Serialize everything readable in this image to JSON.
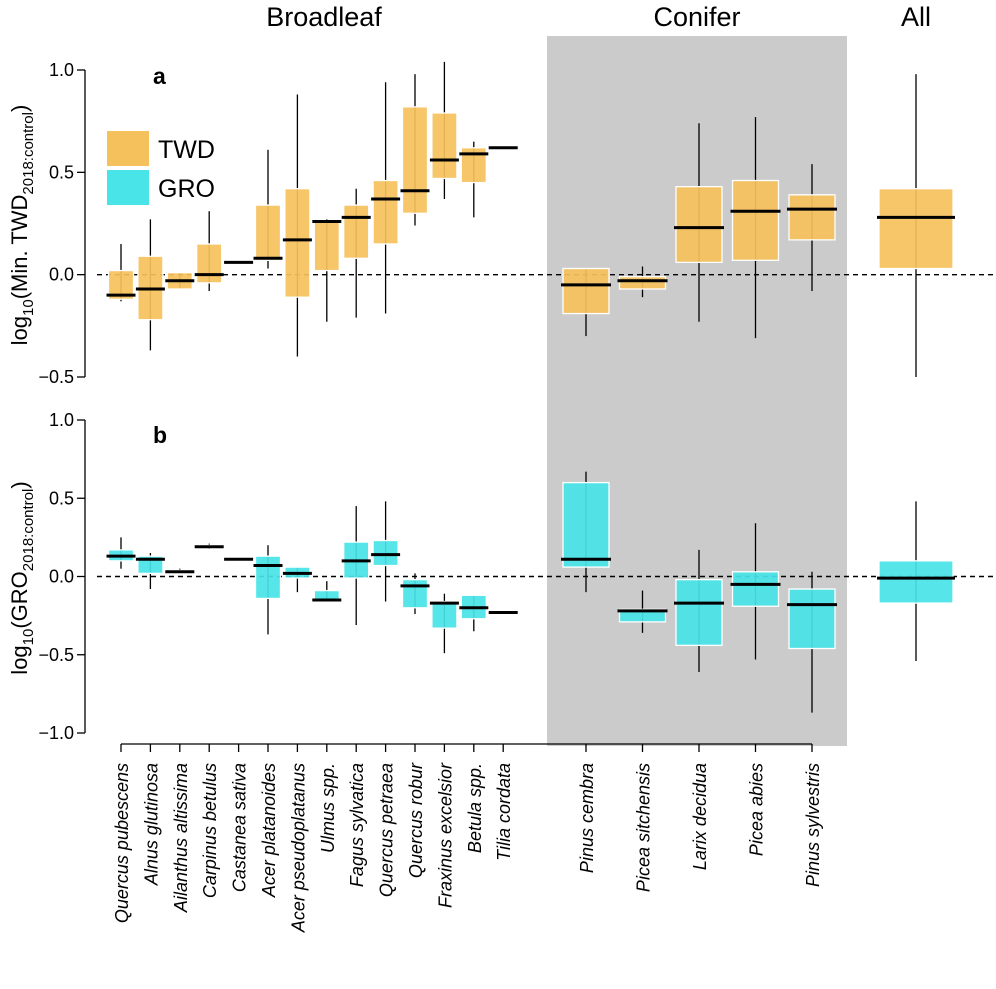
{
  "chart_data": {
    "type": "box",
    "groups": [
      {
        "label": "Broadleaf",
        "categories": [
          "Quercus pubescens",
          "Alnus glutinosa",
          "Ailanthus altissima",
          "Carpinus betulus",
          "Castanea sativa",
          "Acer platanoides",
          "Acer pseudoplatanus",
          "Ulmus spp.",
          "Fagus sylvatica",
          "Quercus petraea",
          "Quercus robur",
          "Fraxinus excelsior",
          "Betula spp.",
          "Tilia cordata"
        ]
      },
      {
        "label": "Conifer",
        "categories": [
          "Pinus cembra",
          "Picea sitchensis",
          "Larix decidua",
          "Picea abies",
          "Pinus sylvestris"
        ]
      },
      {
        "label": "All",
        "categories": [
          "All"
        ]
      }
    ],
    "legend": [
      {
        "name": "TWD",
        "color": "#f5c15c"
      },
      {
        "name": "GRO",
        "color": "#48e4e8"
      }
    ],
    "colors": {
      "twd": "#f5c15c",
      "gro": "#48e4e8",
      "conifer_bg": "#cbcbcb"
    },
    "panels": [
      {
        "label": "a",
        "ylabel_main": "log",
        "ylabel_sub1": "10",
        "ylabel_mid": "(Min. TWD",
        "ylabel_sub2": "2018:control",
        "ylabel_end": ")",
        "ylim": [
          -0.5,
          1.0
        ],
        "yticks": [
          "−0.5",
          "0.0",
          "0.5",
          "1.0"
        ],
        "reference_line": 0.0,
        "series": "TWD",
        "boxes": [
          {
            "name": "Quercus pubescens",
            "min": -0.13,
            "q1": -0.12,
            "median": -0.1,
            "q3": 0.02,
            "max": 0.15
          },
          {
            "name": "Alnus glutinosa",
            "min": -0.37,
            "q1": -0.22,
            "median": -0.07,
            "q3": 0.09,
            "max": 0.27
          },
          {
            "name": "Ailanthus altissima",
            "min": -0.07,
            "q1": -0.07,
            "median": -0.03,
            "q3": 0.01,
            "max": 0.01
          },
          {
            "name": "Carpinus betulus",
            "min": -0.08,
            "q1": -0.04,
            "median": 0.0,
            "q3": 0.15,
            "max": 0.31
          },
          {
            "name": "Castanea sativa",
            "min": 0.06,
            "q1": 0.06,
            "median": 0.06,
            "q3": 0.06,
            "max": 0.06
          },
          {
            "name": "Acer platanoides",
            "min": 0.03,
            "q1": 0.07,
            "median": 0.08,
            "q3": 0.34,
            "max": 0.61
          },
          {
            "name": "Acer pseudoplatanus",
            "min": -0.4,
            "q1": -0.11,
            "median": 0.17,
            "q3": 0.42,
            "max": 0.88
          },
          {
            "name": "Ulmus spp.",
            "min": -0.23,
            "q1": 0.02,
            "median": 0.26,
            "q3": 0.26,
            "max": 0.27
          },
          {
            "name": "Fagus sylvatica",
            "min": -0.21,
            "q1": 0.08,
            "median": 0.28,
            "q3": 0.34,
            "max": 0.42
          },
          {
            "name": "Quercus petraea",
            "min": -0.19,
            "q1": 0.15,
            "median": 0.37,
            "q3": 0.46,
            "max": 0.94
          },
          {
            "name": "Quercus robur",
            "min": 0.24,
            "q1": 0.3,
            "median": 0.41,
            "q3": 0.82,
            "max": 0.98
          },
          {
            "name": "Fraxinus excelsior",
            "min": 0.37,
            "q1": 0.47,
            "median": 0.56,
            "q3": 0.79,
            "max": 1.04
          },
          {
            "name": "Betula spp.",
            "min": 0.28,
            "q1": 0.45,
            "median": 0.59,
            "q3": 0.62,
            "max": 0.65
          },
          {
            "name": "Tilia cordata",
            "min": 0.62,
            "q1": 0.62,
            "median": 0.62,
            "q3": 0.62,
            "max": 0.62
          },
          {
            "name": "Pinus cembra",
            "min": -0.3,
            "q1": -0.19,
            "median": -0.05,
            "q3": 0.03,
            "max": 0.03
          },
          {
            "name": "Picea sitchensis",
            "min": -0.11,
            "q1": -0.07,
            "median": -0.03,
            "q3": -0.01,
            "max": 0.04
          },
          {
            "name": "Larix decidua",
            "min": -0.23,
            "q1": 0.06,
            "median": 0.23,
            "q3": 0.43,
            "max": 0.74
          },
          {
            "name": "Picea abies",
            "min": -0.31,
            "q1": 0.07,
            "median": 0.31,
            "q3": 0.46,
            "max": 0.77
          },
          {
            "name": "Pinus sylvestris",
            "min": -0.08,
            "q1": 0.17,
            "median": 0.32,
            "q3": 0.39,
            "max": 0.54
          },
          {
            "name": "All",
            "min": -0.5,
            "q1": 0.03,
            "median": 0.28,
            "q3": 0.42,
            "max": 0.98
          }
        ]
      },
      {
        "label": "b",
        "ylabel_main": "log",
        "ylabel_sub1": "10",
        "ylabel_mid": "(GRO",
        "ylabel_sub2": "2018:control",
        "ylabel_end": ")",
        "ylim": [
          -1.0,
          1.0
        ],
        "yticks": [
          "−1.0",
          "−0.5",
          "0.0",
          "0.5",
          "1.0"
        ],
        "reference_line": 0.0,
        "series": "GRO",
        "boxes": [
          {
            "name": "Quercus pubescens",
            "min": 0.05,
            "q1": 0.1,
            "median": 0.13,
            "q3": 0.17,
            "max": 0.25
          },
          {
            "name": "Alnus glutinosa",
            "min": -0.08,
            "q1": 0.02,
            "median": 0.11,
            "q3": 0.13,
            "max": 0.15
          },
          {
            "name": "Ailanthus altissima",
            "min": 0.02,
            "q1": 0.02,
            "median": 0.03,
            "q3": 0.04,
            "max": 0.05
          },
          {
            "name": "Carpinus betulus",
            "min": 0.18,
            "q1": 0.19,
            "median": 0.19,
            "q3": 0.2,
            "max": 0.21
          },
          {
            "name": "Castanea sativa",
            "min": 0.11,
            "q1": 0.11,
            "median": 0.11,
            "q3": 0.11,
            "max": 0.11
          },
          {
            "name": "Acer platanoides",
            "min": -0.37,
            "q1": -0.14,
            "median": 0.07,
            "q3": 0.13,
            "max": 0.2
          },
          {
            "name": "Acer pseudoplatanus",
            "min": -0.1,
            "q1": -0.01,
            "median": 0.02,
            "q3": 0.06,
            "max": 0.06
          },
          {
            "name": "Ulmus spp.",
            "min": -0.16,
            "q1": -0.16,
            "median": -0.15,
            "q3": -0.09,
            "max": -0.03
          },
          {
            "name": "Fagus sylvatica",
            "min": -0.31,
            "q1": -0.01,
            "median": 0.1,
            "q3": 0.22,
            "max": 0.45
          },
          {
            "name": "Quercus petraea",
            "min": -0.16,
            "q1": 0.07,
            "median": 0.14,
            "q3": 0.23,
            "max": 0.48
          },
          {
            "name": "Quercus robur",
            "min": -0.24,
            "q1": -0.2,
            "median": -0.06,
            "q3": -0.02,
            "max": 0.02
          },
          {
            "name": "Fraxinus excelsior",
            "min": -0.49,
            "q1": -0.33,
            "median": -0.17,
            "q3": -0.16,
            "max": -0.11
          },
          {
            "name": "Betula spp.",
            "min": -0.35,
            "q1": -0.27,
            "median": -0.2,
            "q3": -0.12,
            "max": -0.12
          },
          {
            "name": "Tilia cordata",
            "min": -0.23,
            "q1": -0.23,
            "median": -0.23,
            "q3": -0.23,
            "max": -0.23
          },
          {
            "name": "Pinus cembra",
            "min": -0.1,
            "q1": 0.06,
            "median": 0.11,
            "q3": 0.6,
            "max": 0.67
          },
          {
            "name": "Picea sitchensis",
            "min": -0.36,
            "q1": -0.29,
            "median": -0.22,
            "q3": -0.21,
            "max": -0.09
          },
          {
            "name": "Larix decidua",
            "min": -0.61,
            "q1": -0.44,
            "median": -0.17,
            "q3": -0.02,
            "max": 0.17
          },
          {
            "name": "Picea abies",
            "min": -0.53,
            "q1": -0.19,
            "median": -0.05,
            "q3": 0.03,
            "max": 0.34
          },
          {
            "name": "Pinus sylvestris",
            "min": -0.87,
            "q1": -0.46,
            "median": -0.18,
            "q3": -0.08,
            "max": 0.03
          },
          {
            "name": "All",
            "min": -0.54,
            "q1": -0.17,
            "median": -0.01,
            "q3": 0.1,
            "max": 0.48
          }
        ]
      }
    ]
  }
}
